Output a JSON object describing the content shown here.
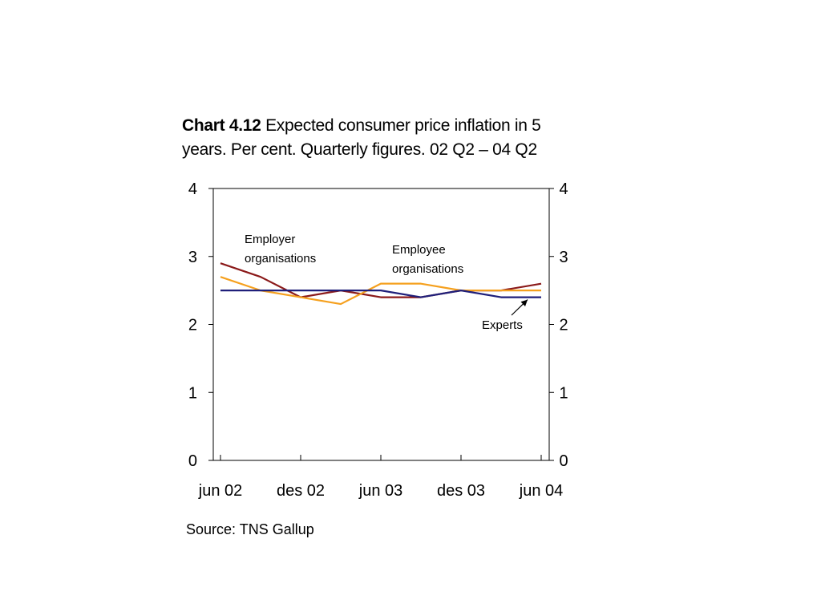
{
  "title": {
    "number": "Chart 4.12",
    "text": "Expected consumer price inflation in 5 years. Per cent. Quarterly figures. 02 Q2 – 04 Q2"
  },
  "source": "Source: TNS Gallup",
  "chart_data": {
    "type": "line",
    "x": [
      "02 Q2",
      "02 Q3",
      "02 Q4",
      "03 Q1",
      "03 Q2",
      "03 Q3",
      "03 Q4",
      "04 Q1",
      "04 Q2"
    ],
    "x_tick_labels": [
      "jun 02",
      "des 02",
      "jun 03",
      "des 03",
      "jun 04"
    ],
    "y_tick_labels": [
      "0",
      "1",
      "2",
      "3",
      "4"
    ],
    "ylim": [
      0,
      4
    ],
    "y_ticks": [
      0,
      1,
      2,
      3,
      4
    ],
    "secondary_y_ticks": [
      0,
      1,
      2,
      3,
      4
    ],
    "grid": false,
    "series": [
      {
        "name": "Employer organisations",
        "color": "#8B1A1A",
        "values": [
          2.9,
          2.7,
          2.4,
          2.5,
          2.4,
          2.4,
          2.5,
          2.5,
          2.6
        ]
      },
      {
        "name": "Employee organisations",
        "color": "#F5A01E",
        "values": [
          2.7,
          2.5,
          2.4,
          2.3,
          2.6,
          2.6,
          2.5,
          2.5,
          2.5
        ]
      },
      {
        "name": "Experts",
        "color": "#1F1F7A",
        "values": [
          2.5,
          2.5,
          2.5,
          2.5,
          2.5,
          2.4,
          2.5,
          2.4,
          2.4
        ]
      }
    ],
    "annotations": {
      "employer": [
        "Employer",
        "organisations"
      ],
      "employee": [
        "Employee",
        "organisations"
      ],
      "experts": "Experts"
    }
  }
}
